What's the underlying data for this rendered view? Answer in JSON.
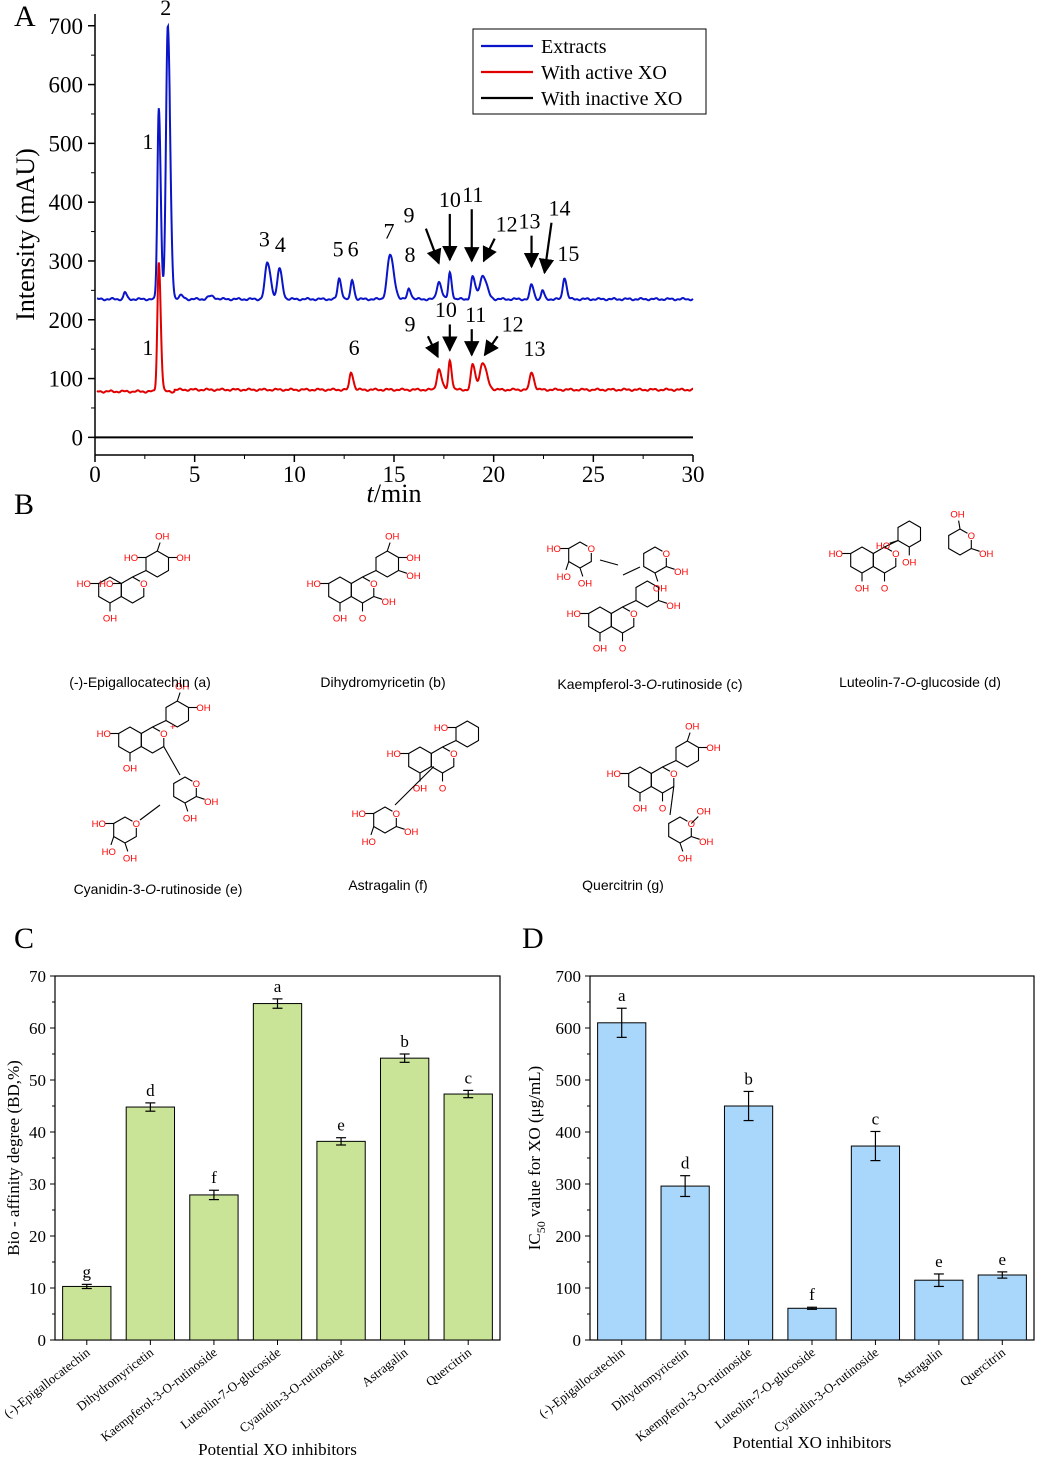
{
  "panels": {
    "a": "A",
    "b": "B",
    "c": "C",
    "d": "D"
  },
  "colors": {
    "extracts": "#0a14c8",
    "active": "#e00000",
    "inactive": "#000000",
    "barC": "#c9e497",
    "barD": "#a9d7fb",
    "heteroatom": "#ff0000"
  },
  "chart_data": [
    {
      "type": "line",
      "xlabel_italic": "t",
      "xlabel_rest": "/min",
      "ylabel": "Intensity (mAU)",
      "xlim": [
        0,
        30
      ],
      "ylim": [
        -30,
        720
      ],
      "xticks": [
        0,
        5,
        10,
        15,
        20,
        25,
        30
      ],
      "yticks": [
        0,
        100,
        200,
        300,
        400,
        500,
        600,
        700
      ],
      "legend_position": "top-right",
      "series": [
        {
          "name": "Extracts",
          "color": "#0a14c8",
          "baseline": 235,
          "peaks": [
            {
              "label": "",
              "t": 1.5,
              "h": 12,
              "w": 0.06
            },
            {
              "label": "1",
              "t": 3.2,
              "h": 325,
              "w": 0.07
            },
            {
              "label": "2",
              "t": 3.65,
              "h": 465,
              "w": 0.09
            },
            {
              "label": "",
              "t": 4.3,
              "h": 6,
              "w": 0.1
            },
            {
              "label": "",
              "t": 5.8,
              "h": 5,
              "w": 0.15
            },
            {
              "label": "3",
              "t": 8.65,
              "h": 62,
              "w": 0.12
            },
            {
              "label": "4",
              "t": 9.25,
              "h": 52,
              "w": 0.1
            },
            {
              "label": "5",
              "t": 12.25,
              "h": 35,
              "w": 0.08
            },
            {
              "label": "6",
              "t": 12.9,
              "h": 33,
              "w": 0.07
            },
            {
              "label": "7",
              "t": 14.8,
              "h": 75,
              "w": 0.14
            },
            {
              "label": "8",
              "t": 15.75,
              "h": 18,
              "w": 0.08
            },
            {
              "label": "9",
              "t": 17.25,
              "h": 30,
              "w": 0.1
            },
            {
              "label": "10",
              "t": 17.8,
              "h": 45,
              "w": 0.07
            },
            {
              "label": "11",
              "t": 18.95,
              "h": 38,
              "w": 0.09
            },
            {
              "label": "12",
              "t": 19.45,
              "h": 40,
              "w": 0.15
            },
            {
              "label": "13",
              "t": 21.9,
              "h": 25,
              "w": 0.08
            },
            {
              "label": "14",
              "t": 22.45,
              "h": 15,
              "w": 0.06
            },
            {
              "label": "15",
              "t": 23.55,
              "h": 37,
              "w": 0.08
            }
          ]
        },
        {
          "name": "With active XO",
          "color": "#e00000",
          "baseline": 78,
          "peaks": [
            {
              "label": "1",
              "t": 3.2,
              "h": 220,
              "w": 0.07
            },
            {
              "label": "6",
              "t": 12.85,
              "h": 30,
              "w": 0.08
            },
            {
              "label": "9",
              "t": 17.25,
              "h": 35,
              "w": 0.1
            },
            {
              "label": "10",
              "t": 17.8,
              "h": 50,
              "w": 0.07
            },
            {
              "label": "11",
              "t": 18.95,
              "h": 43,
              "w": 0.09
            },
            {
              "label": "12",
              "t": 19.45,
              "h": 45,
              "w": 0.15
            },
            {
              "label": "13",
              "t": 21.9,
              "h": 30,
              "w": 0.09
            }
          ]
        },
        {
          "name": "With inactive XO",
          "color": "#000000",
          "baseline": 0,
          "peaks": []
        }
      ],
      "annotations": [
        {
          "label": "1",
          "t": 2.65,
          "v": 490
        },
        {
          "label": "2",
          "t": 3.55,
          "v": 718
        },
        {
          "label": "3",
          "t": 8.5,
          "v": 325
        },
        {
          "label": "4",
          "t": 9.3,
          "v": 315
        },
        {
          "label": "5",
          "t": 12.2,
          "v": 308
        },
        {
          "label": "6",
          "t": 12.95,
          "v": 308
        },
        {
          "label": "7",
          "t": 14.75,
          "v": 338
        },
        {
          "label": "8",
          "t": 15.8,
          "v": 298
        },
        {
          "label": "9",
          "t": 15.75,
          "v": 365
        },
        {
          "label": "10",
          "t": 17.8,
          "v": 392
        },
        {
          "label": "11",
          "t": 18.95,
          "v": 400
        },
        {
          "label": "12",
          "t": 20.65,
          "v": 350
        },
        {
          "label": "13",
          "t": 21.8,
          "v": 355
        },
        {
          "label": "14",
          "t": 23.3,
          "v": 377
        },
        {
          "label": "15",
          "t": 23.75,
          "v": 300
        },
        {
          "label": "1",
          "t": 2.65,
          "v": 140
        },
        {
          "label": "6",
          "t": 13.0,
          "v": 140
        },
        {
          "label": "9",
          "t": 15.8,
          "v": 180
        },
        {
          "label": "10",
          "t": 17.6,
          "v": 205
        },
        {
          "label": "11",
          "t": 19.1,
          "v": 196
        },
        {
          "label": "12",
          "t": 20.95,
          "v": 180
        },
        {
          "label": "13",
          "t": 22.05,
          "v": 138
        }
      ],
      "arrows": [
        {
          "from": [
            16.6,
            355
          ],
          "to": [
            17.25,
            296
          ]
        },
        {
          "from": [
            17.8,
            380
          ],
          "to": [
            17.8,
            302
          ]
        },
        {
          "from": [
            18.9,
            388
          ],
          "to": [
            18.9,
            300
          ]
        },
        {
          "from": [
            20.05,
            338
          ],
          "to": [
            19.5,
            300
          ]
        },
        {
          "from": [
            21.9,
            343
          ],
          "to": [
            21.9,
            290
          ]
        },
        {
          "from": [
            22.9,
            365
          ],
          "to": [
            22.55,
            280
          ]
        },
        {
          "from": [
            16.7,
            172
          ],
          "to": [
            17.2,
            137
          ]
        },
        {
          "from": [
            17.8,
            192
          ],
          "to": [
            17.8,
            148
          ]
        },
        {
          "from": [
            18.9,
            184
          ],
          "to": [
            18.9,
            140
          ]
        },
        {
          "from": [
            20.2,
            172
          ],
          "to": [
            19.55,
            140
          ]
        }
      ]
    },
    {
      "type": "bar",
      "ylabel": "Bio - affinity degree (BD,%)",
      "xlabel": "Potential XO inhibitors",
      "ylim": [
        0,
        70
      ],
      "yticks": [
        0,
        10,
        20,
        30,
        40,
        50,
        60,
        70
      ],
      "categories": [
        "(-)-Epigallocatechin",
        "Dihydromyricetin",
        "Kaempferol-3-O-rutinoside",
        "Luteolin-7-O-glucoside",
        "Cyanidin-3-O-rutinoside",
        "Astragalin",
        "Quercitrin"
      ],
      "values": [
        10.3,
        44.8,
        27.9,
        64.7,
        38.2,
        54.2,
        47.3
      ],
      "errors": [
        0.4,
        0.8,
        0.9,
        0.9,
        0.7,
        0.8,
        0.7
      ],
      "letters": [
        "g",
        "d",
        "f",
        "a",
        "e",
        "b",
        "c"
      ]
    },
    {
      "type": "bar",
      "ylabel_pre": "IC",
      "ylabel_sub": "50",
      "ylabel_post": " value for XO (μg/mL)",
      "xlabel": "Potential XO inhibitors",
      "ylim": [
        0,
        700
      ],
      "yticks": [
        0,
        100,
        200,
        300,
        400,
        500,
        600,
        700
      ],
      "categories": [
        "(-)-Epigallocatechin",
        "Dihydromyricetin",
        "Kaempferol-3-O-rutinoside",
        "Luteolin-7-O-glucoside",
        "Cyanidin-3-O-rutinoside",
        "Astragalin",
        "Quercitrin"
      ],
      "values": [
        610,
        296,
        450,
        61,
        373,
        115,
        125
      ],
      "errors": [
        28,
        20,
        28,
        2,
        28,
        12,
        6
      ],
      "letters": [
        "a",
        "d",
        "b",
        "f",
        "c",
        "e",
        "e"
      ]
    }
  ],
  "compounds": [
    {
      "pre": "(-)-Epigallocatechin (a)",
      "italic": "",
      "post": ""
    },
    {
      "pre": "Dihydromyricetin (b)",
      "italic": "",
      "post": ""
    },
    {
      "pre": "Kaempferol-3-",
      "italic": "O",
      "post": "-rutinoside (c)"
    },
    {
      "pre": "Luteolin-7-",
      "italic": "O",
      "post": "-glucoside (d)"
    },
    {
      "pre": "Cyanidin-3-",
      "italic": "O",
      "post": "-rutinoside (e)"
    },
    {
      "pre": "Astragalin (f)",
      "italic": "",
      "post": ""
    },
    {
      "pre": "Quercitrin (g)",
      "italic": "",
      "post": ""
    }
  ],
  "atom_labels": {
    "oh": "OH",
    "ho": "HO",
    "o": "O",
    "oplus": "O+"
  }
}
